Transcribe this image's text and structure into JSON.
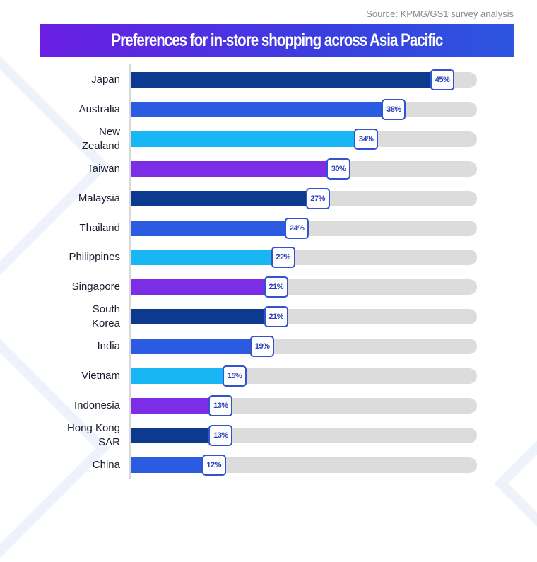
{
  "source": "Source: KPMG/GS1 survey analysis",
  "chart_data": {
    "type": "bar",
    "orientation": "horizontal",
    "title": "Preferences for in-store shopping across Asia Pacific",
    "categories": [
      "Japan",
      "Australia",
      "New Zealand",
      "Taiwan",
      "Malaysia",
      "Thailand",
      "Philippines",
      "Singapore",
      "South Korea",
      "India",
      "Vietnam",
      "Indonesia",
      "Hong Kong SAR",
      "China"
    ],
    "category_lines": [
      [
        "Japan"
      ],
      [
        "Australia"
      ],
      [
        "New",
        "Zealand"
      ],
      [
        "Taiwan"
      ],
      [
        "Malaysia"
      ],
      [
        "Thailand"
      ],
      [
        "Philippines"
      ],
      [
        "Singapore"
      ],
      [
        "South",
        "Korea"
      ],
      [
        "India"
      ],
      [
        "Vietnam"
      ],
      [
        "Indonesia"
      ],
      [
        "Hong Kong",
        "SAR"
      ],
      [
        "China"
      ]
    ],
    "values": [
      45,
      38,
      34,
      30,
      27,
      24,
      22,
      21,
      21,
      19,
      15,
      13,
      13,
      12
    ],
    "value_labels": [
      "45%",
      "38%",
      "34%",
      "30%",
      "27%",
      "24%",
      "22%",
      "21%",
      "21%",
      "19%",
      "15%",
      "13%",
      "13%",
      "12%"
    ],
    "xlim": [
      0,
      50
    ],
    "unit": "%",
    "colors": [
      "#0b3a8f",
      "#2a5be0",
      "#18b6f2",
      "#7b2ee6"
    ]
  }
}
